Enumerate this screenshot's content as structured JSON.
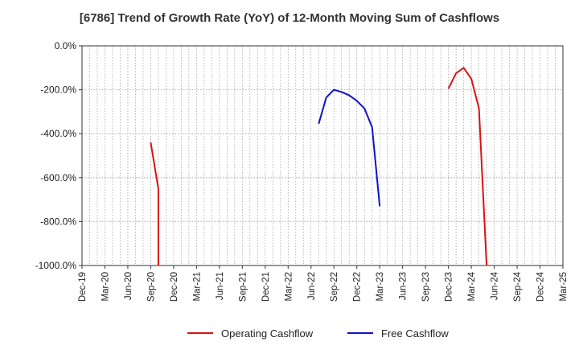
{
  "chart_data": {
    "type": "line",
    "title": "[6786]  Trend of Growth Rate (YoY) of 12-Month Moving Sum of Cashflows",
    "xlabel": "",
    "ylabel": "",
    "x_axis": {
      "start": "2019-12",
      "end": "2025-03",
      "tick_labels": [
        "Dec-19",
        "Mar-20",
        "Jun-20",
        "Sep-20",
        "Dec-20",
        "Mar-21",
        "Jun-21",
        "Sep-21",
        "Dec-21",
        "Mar-22",
        "Jun-22",
        "Sep-22",
        "Dec-22",
        "Mar-23",
        "Jun-23",
        "Sep-23",
        "Dec-23",
        "Mar-24",
        "Jun-24",
        "Sep-24",
        "Dec-24",
        "Mar-25"
      ]
    },
    "y_axis": {
      "ylim": [
        -1000,
        0
      ],
      "tick_values": [
        0,
        -200,
        -400,
        -600,
        -800,
        -1000
      ],
      "tick_labels": [
        "0.0%",
        "-200.0%",
        "-400.0%",
        "-600.0%",
        "-800.0%",
        "-1000.0%"
      ]
    },
    "grid": true,
    "legend_position": "bottom",
    "series": [
      {
        "name": "Operating Cashflow",
        "color": "#dd1111",
        "points": [
          [
            "2020-09",
            -440
          ],
          [
            "2020-10",
            -650
          ],
          [
            "2020-10",
            -1000
          ],
          null,
          [
            "2023-12",
            -195
          ],
          [
            "2024-01",
            -125
          ],
          [
            "2024-02",
            -100
          ],
          [
            "2024-03",
            -150
          ],
          [
            "2024-04",
            -285
          ],
          [
            "2024-05",
            -1000
          ]
        ]
      },
      {
        "name": "Free Cashflow",
        "color": "#1111cc",
        "points": [
          [
            "2022-07",
            -355
          ],
          [
            "2022-08",
            -235
          ],
          [
            "2022-09",
            -200
          ],
          [
            "2022-10",
            -210
          ],
          [
            "2022-11",
            -225
          ],
          [
            "2022-12",
            -250
          ],
          [
            "2023-01",
            -285
          ],
          [
            "2023-02",
            -370
          ],
          [
            "2023-03",
            -730
          ]
        ]
      }
    ]
  }
}
